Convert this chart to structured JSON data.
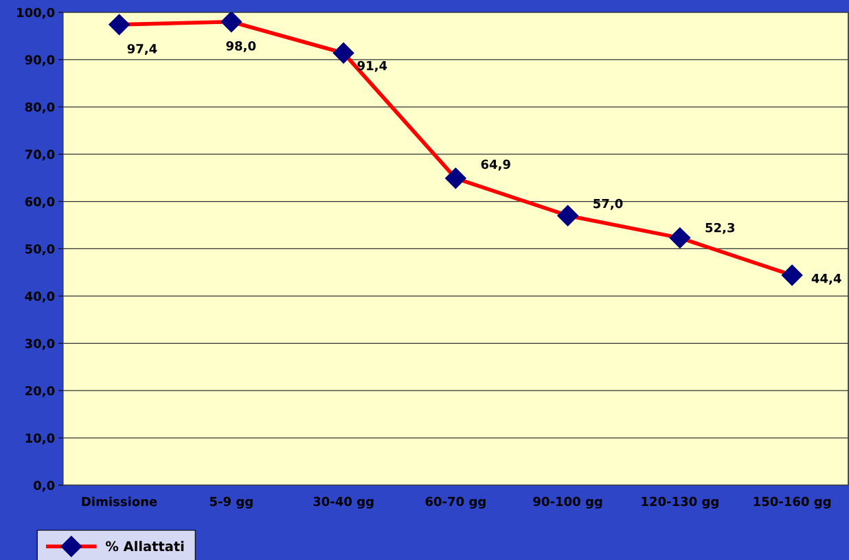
{
  "chart_data": {
    "type": "line",
    "categories": [
      "Dimissione",
      "5-9 gg",
      "30-40 gg",
      "60-70 gg",
      "90-100 gg",
      "120-130 gg",
      "150-160 gg"
    ],
    "series": [
      {
        "name": "% Allattati",
        "color": "#ff0000",
        "values": [
          97.4,
          98.0,
          91.4,
          64.9,
          57.0,
          52.3,
          44.4
        ],
        "value_labels": [
          "97,4",
          "98,0",
          "91,4",
          "64,9",
          "57,0",
          "52,3",
          "44,4"
        ]
      }
    ],
    "ylim": [
      0,
      100
    ],
    "yticks": [
      {
        "value": 0,
        "label": "0,0"
      },
      {
        "value": 10,
        "label": "10,0"
      },
      {
        "value": 20,
        "label": "20,0"
      },
      {
        "value": 30,
        "label": "30,0"
      },
      {
        "value": 40,
        "label": "40,0"
      },
      {
        "value": 50,
        "label": "50,0"
      },
      {
        "value": 60,
        "label": "60,0"
      },
      {
        "value": 70,
        "label": "70,0"
      },
      {
        "value": 80,
        "label": "80,0"
      },
      {
        "value": 90,
        "label": "90,0"
      },
      {
        "value": 100,
        "label": "100,0"
      }
    ],
    "grid": "y",
    "legend": "bottom left",
    "marker": "diamond",
    "line_style": "solid"
  }
}
